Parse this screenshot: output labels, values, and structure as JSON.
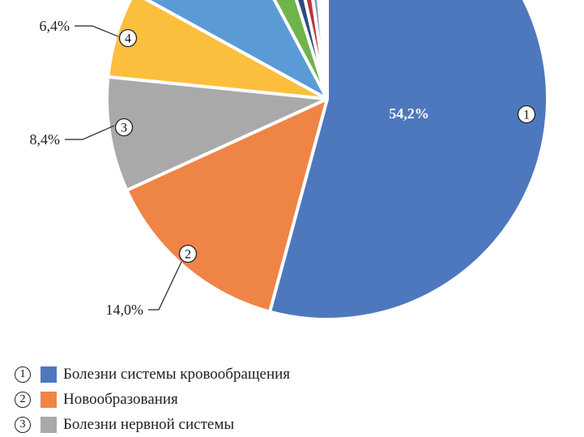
{
  "chart_data": {
    "type": "pie",
    "slices": [
      {
        "num": "1",
        "label": "Болезни системы кровообращения",
        "value": 54.2,
        "value_label": "54,2%",
        "color": "#4e78bd"
      },
      {
        "num": "2",
        "label": "Новообразования",
        "value": 14.0,
        "value_label": "14,0%",
        "color": "#ef8447"
      },
      {
        "num": "3",
        "label": "Болезни нервной системы",
        "value": 8.4,
        "value_label": "8,4%",
        "color": "#a9a9a9"
      },
      {
        "num": "4",
        "label": "",
        "value": 6.4,
        "value_label": "6,4%",
        "color": "#fbbf3d"
      },
      {
        "num": "",
        "label": "",
        "value": 9.2,
        "value_label": "",
        "color": "#5b9bd5"
      },
      {
        "num": "",
        "label": "",
        "value": 3.0,
        "value_label": "",
        "color": "#6fb44b"
      },
      {
        "num": "",
        "label": "",
        "value": 1.3,
        "value_label": "",
        "color": "#2b4c7e"
      },
      {
        "num": "",
        "label": "",
        "value": 1.2,
        "value_label": "",
        "color": "#c0333a"
      },
      {
        "num": "",
        "label": "",
        "value": 0.9,
        "value_label": "",
        "color": "#8a9bb0"
      },
      {
        "num": "",
        "label": "",
        "value": 1.4,
        "value_label": "",
        "color": "#ffffff"
      }
    ],
    "legend_placement": "bottom-left"
  }
}
